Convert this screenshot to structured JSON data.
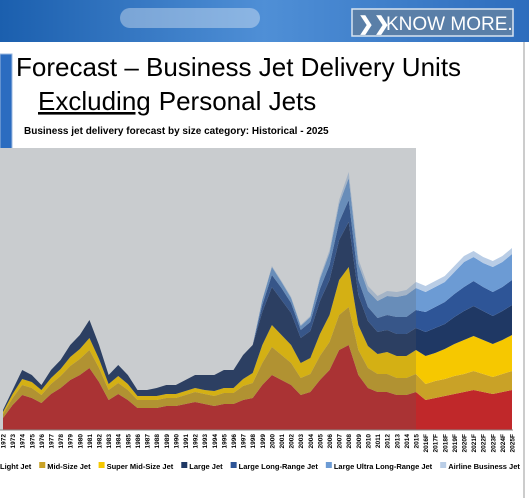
{
  "header": {
    "button": "KNOW MORE.",
    "title": "Forecast – Business Jet Delivery Units",
    "subtitle_underlined": "Excluding",
    "subtitle_rest": "Personal Jets"
  },
  "chart_data": {
    "type": "stacked-area",
    "title": "Business jet delivery forecast by size category: Historical - 2025",
    "categories": [
      "1972",
      "1973",
      "1974",
      "1975",
      "1976",
      "1977",
      "1978",
      "1979",
      "1980",
      "1981",
      "1982",
      "1983",
      "1984",
      "1985",
      "1986",
      "1987",
      "1988",
      "1989",
      "1990",
      "1991",
      "1992",
      "1993",
      "1994",
      "1995",
      "1996",
      "1997",
      "1998",
      "1999",
      "2000",
      "2001",
      "2002",
      "2003",
      "2004",
      "2005",
      "2006",
      "2007",
      "2008",
      "2009",
      "2010",
      "2011",
      "2012",
      "2013",
      "2014",
      "2015",
      "2016F",
      "2017F",
      "2018F",
      "2019F",
      "2020F",
      "2021F",
      "2022F",
      "2023F",
      "2024F",
      "2025F"
    ],
    "ylim": [
      0,
      280
    ],
    "legend": "bottom",
    "series": [
      {
        "name": "Light Jet",
        "color": "#c0282a",
        "values": [
          12,
          25,
          35,
          32,
          27,
          36,
          42,
          50,
          55,
          62,
          48,
          30,
          36,
          30,
          22,
          22,
          22,
          24,
          24,
          26,
          28,
          26,
          24,
          26,
          26,
          30,
          32,
          45,
          55,
          50,
          45,
          35,
          38,
          50,
          60,
          80,
          85,
          55,
          42,
          38,
          38,
          35,
          35,
          38,
          30,
          32,
          34,
          36,
          38,
          40,
          38,
          36,
          38,
          40
        ]
      },
      {
        "name": "Mid-Size Jet",
        "color": "#c9a227",
        "values": [
          4,
          7,
          10,
          10,
          8,
          10,
          12,
          14,
          16,
          18,
          14,
          10,
          11,
          10,
          8,
          8,
          8,
          8,
          8,
          9,
          10,
          10,
          10,
          11,
          11,
          14,
          15,
          22,
          28,
          25,
          22,
          17,
          18,
          24,
          28,
          35,
          38,
          25,
          20,
          18,
          18,
          17,
          17,
          18,
          16,
          17,
          17,
          18,
          18,
          19,
          18,
          17,
          18,
          19
        ]
      },
      {
        "name": "Super Mid-Size Jet",
        "color": "#f6c800",
        "values": [
          2,
          4,
          6,
          6,
          5,
          6,
          7,
          9,
          10,
          12,
          9,
          6,
          7,
          6,
          4,
          4,
          4,
          4,
          4,
          4,
          4,
          4,
          5,
          5,
          5,
          7,
          10,
          18,
          22,
          20,
          18,
          15,
          16,
          22,
          27,
          35,
          40,
          25,
          22,
          20,
          22,
          22,
          22,
          24,
          28,
          28,
          30,
          32,
          34,
          35,
          34,
          33,
          34,
          36
        ]
      },
      {
        "name": "Large Jet",
        "color": "#1f3864",
        "values": [
          2,
          4,
          9,
          7,
          5,
          8,
          9,
          12,
          14,
          18,
          14,
          9,
          11,
          9,
          6,
          6,
          8,
          9,
          9,
          11,
          13,
          15,
          16,
          18,
          18,
          24,
          28,
          33,
          38,
          35,
          32,
          25,
          27,
          33,
          35,
          40,
          45,
          30,
          25,
          22,
          22,
          22,
          22,
          22,
          24,
          25,
          25,
          27,
          29,
          30,
          29,
          28,
          29,
          30
        ]
      },
      {
        "name": "Large Long-Range Jet",
        "color": "#2e5597",
        "values": [
          0,
          0,
          0,
          0,
          0,
          0,
          0,
          0,
          0,
          0,
          0,
          0,
          0,
          0,
          0,
          0,
          0,
          0,
          0,
          0,
          0,
          0,
          0,
          0,
          0,
          0,
          0,
          7,
          12,
          12,
          10,
          8,
          9,
          12,
          15,
          18,
          22,
          15,
          14,
          14,
          15,
          17,
          17,
          18,
          20,
          21,
          22,
          23,
          24,
          25,
          24,
          24,
          24,
          25
        ]
      },
      {
        "name": "Large Ultra Long-Range Jet",
        "color": "#6c9bd4",
        "values": [
          0,
          0,
          0,
          0,
          0,
          0,
          0,
          0,
          0,
          0,
          0,
          0,
          0,
          0,
          0,
          0,
          0,
          0,
          0,
          0,
          0,
          0,
          0,
          0,
          0,
          0,
          0,
          5,
          8,
          6,
          5,
          4,
          5,
          10,
          12,
          18,
          22,
          16,
          16,
          17,
          19,
          20,
          22,
          22,
          20,
          20,
          20,
          22,
          25,
          24,
          24,
          25,
          25,
          26
        ]
      },
      {
        "name": "Airline Business Jet",
        "color": "#b9cde6",
        "values": [
          0,
          0,
          0,
          0,
          0,
          0,
          0,
          0,
          0,
          0,
          0,
          0,
          0,
          0,
          0,
          0,
          0,
          0,
          0,
          0,
          0,
          0,
          0,
          0,
          0,
          0,
          0,
          0,
          1,
          1,
          1,
          1,
          1,
          2,
          3,
          4,
          6,
          5,
          5,
          5,
          5,
          5,
          5,
          6,
          6,
          6,
          6,
          6,
          6,
          6,
          6,
          6,
          6,
          6
        ]
      }
    ]
  }
}
